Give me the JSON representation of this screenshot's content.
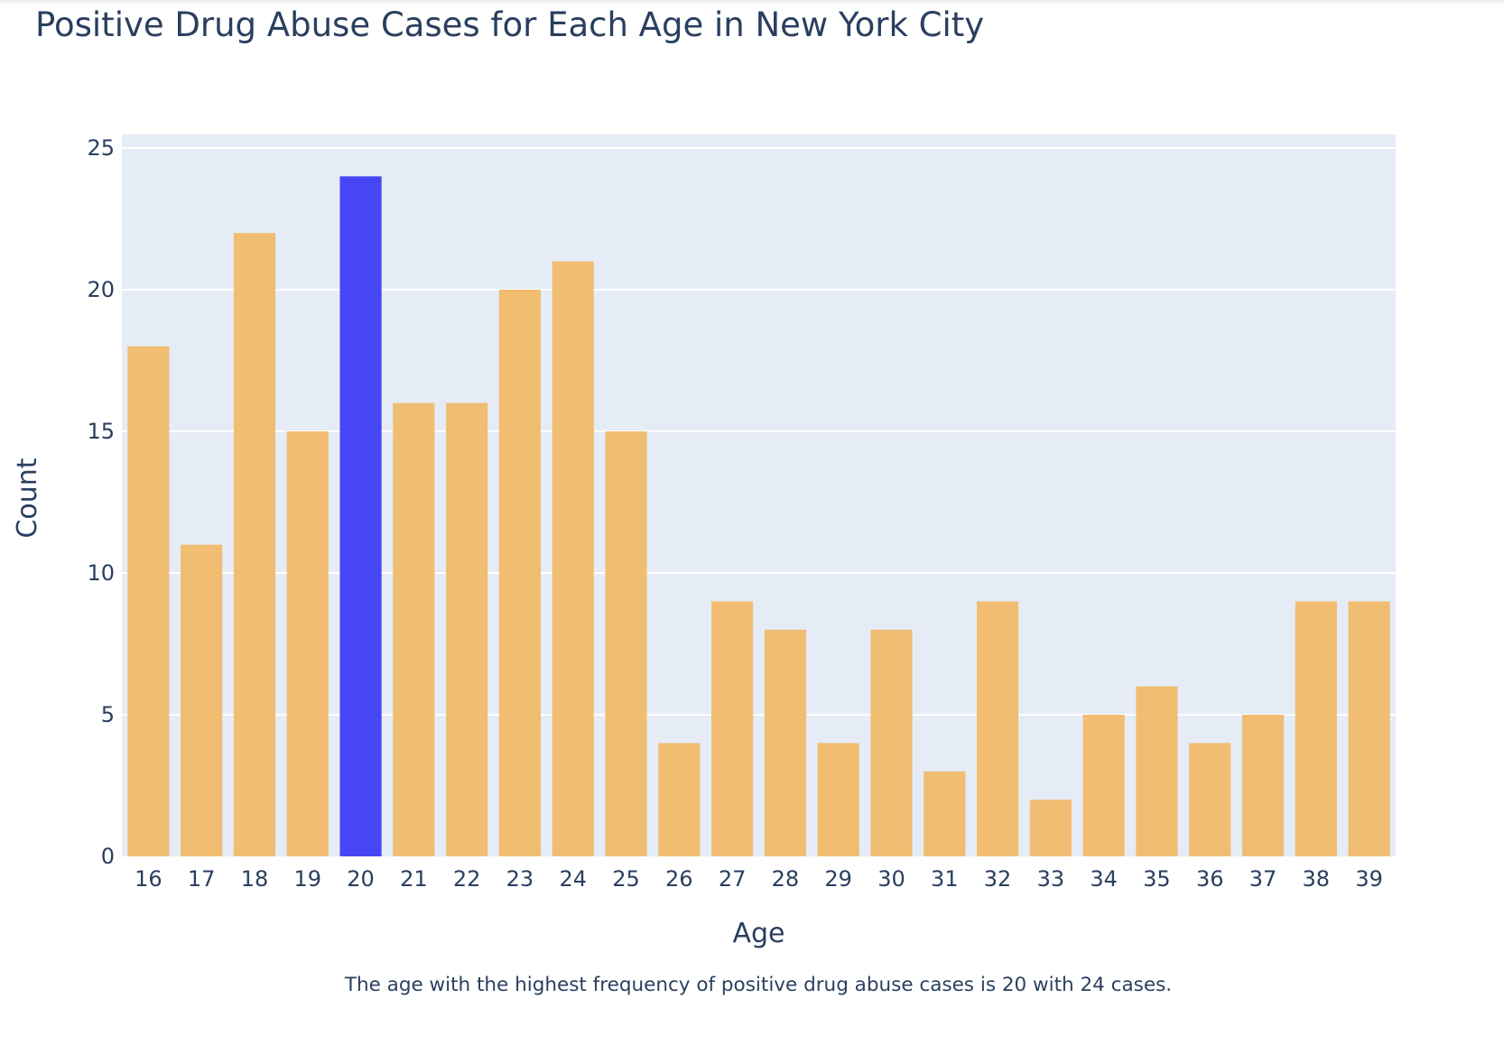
{
  "chart_data": {
    "type": "bar",
    "title": "Positive Drug Abuse Cases for Each Age in New York City",
    "xlabel": "Age",
    "ylabel": "Count",
    "categories": [
      "16",
      "17",
      "18",
      "19",
      "20",
      "21",
      "22",
      "23",
      "24",
      "25",
      "26",
      "27",
      "28",
      "29",
      "30",
      "31",
      "32",
      "33",
      "34",
      "35",
      "36",
      "37",
      "38",
      "39"
    ],
    "values": [
      18,
      11,
      22,
      15,
      24,
      16,
      16,
      20,
      21,
      15,
      4,
      9,
      8,
      4,
      8,
      3,
      9,
      2,
      5,
      6,
      4,
      5,
      9,
      9
    ],
    "highlight_category": "20",
    "ylim": [
      0,
      25
    ],
    "yticks": [
      0,
      5,
      10,
      15,
      20,
      25
    ],
    "grid": true,
    "colors": {
      "bar": "#f0bd72",
      "highlight": "#4646f5",
      "plot_bg": "#e5ecf6",
      "grid": "#ffffff",
      "text": "#2a3f5f"
    }
  },
  "annotation": "The age with the highest frequency of positive drug abuse cases is 20 with 24 cases."
}
